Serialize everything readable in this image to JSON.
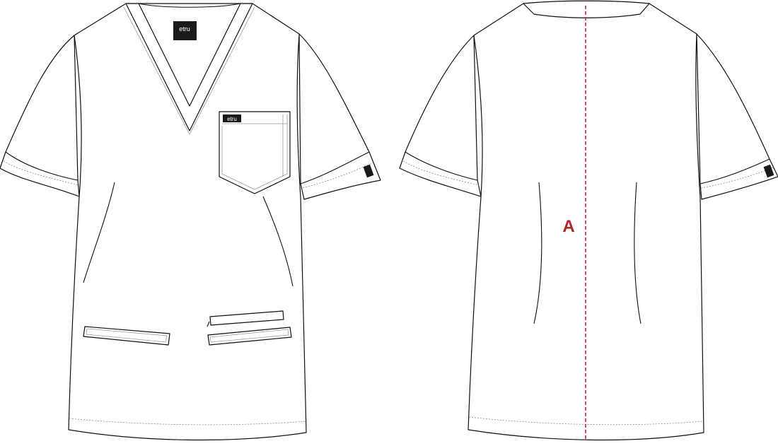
{
  "front": {
    "neck_label_brand": "etru",
    "pocket_label_brand": "etru"
  },
  "back": {
    "measurement_label": "A",
    "measurement_color": "#b3252a"
  },
  "colors": {
    "outline": "#111111",
    "label_background": "#1a1a1a",
    "measurement_line": "#c0282d"
  }
}
